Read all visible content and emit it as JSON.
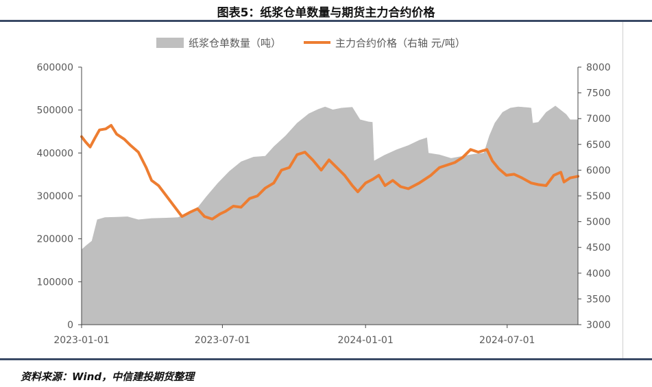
{
  "page": {
    "title": "图表5：纸浆仓单数量与期货主力合约价格",
    "source": "资料来源：Wind，中信建投期货整理"
  },
  "chart_data": {
    "type": "area+line",
    "legend": {
      "position": "top-center",
      "area_label": "纸浆仓单数量（吨）",
      "line_label": "主力合约价格（右轴 元/吨）"
    },
    "colors": {
      "area": "#bfbfbf",
      "line": "#ed7d31",
      "axis": "#444444",
      "text": "#595959"
    },
    "x_axis": {
      "start": "2023-01-01",
      "end": "2024-09-30",
      "ticks": [
        "2023-01-01",
        "2023-07-01",
        "2024-01-01",
        "2024-07-01"
      ]
    },
    "y_left": {
      "min": 0,
      "max": 600000,
      "ticks": [
        "0",
        "100000",
        "200000",
        "300000",
        "400000",
        "500000",
        "600000"
      ]
    },
    "y_right": {
      "min": 3000,
      "max": 8000,
      "ticks": [
        "3000",
        "3500",
        "4000",
        "4500",
        "5000",
        "5500",
        "6000",
        "6500",
        "7000",
        "7500",
        "8000"
      ]
    },
    "grid": false,
    "series": [
      {
        "name": "纸浆仓单数量（吨）",
        "type": "area",
        "axis": "left",
        "points": [
          [
            "2023-01-01",
            175000
          ],
          [
            "2023-01-07",
            185000
          ],
          [
            "2023-01-14",
            195000
          ],
          [
            "2023-01-21",
            245000
          ],
          [
            "2023-01-31",
            250000
          ],
          [
            "2023-02-15",
            251000
          ],
          [
            "2023-03-01",
            252000
          ],
          [
            "2023-03-15",
            245000
          ],
          [
            "2023-04-01",
            248000
          ],
          [
            "2023-04-20",
            249000
          ],
          [
            "2023-05-05",
            250000
          ],
          [
            "2023-05-20",
            262000
          ],
          [
            "2023-05-31",
            275000
          ],
          [
            "2023-06-10",
            298000
          ],
          [
            "2023-06-25",
            330000
          ],
          [
            "2023-07-10",
            358000
          ],
          [
            "2023-07-25",
            380000
          ],
          [
            "2023-08-10",
            391000
          ],
          [
            "2023-08-25",
            393000
          ],
          [
            "2023-09-05",
            415000
          ],
          [
            "2023-09-20",
            440000
          ],
          [
            "2023-10-05",
            470000
          ],
          [
            "2023-10-20",
            492000
          ],
          [
            "2023-11-01",
            502000
          ],
          [
            "2023-11-10",
            508000
          ],
          [
            "2023-11-20",
            501000
          ],
          [
            "2023-12-01",
            505000
          ],
          [
            "2023-12-15",
            507000
          ],
          [
            "2023-12-25",
            478000
          ],
          [
            "2024-01-05",
            473000
          ],
          [
            "2024-01-10",
            472000
          ],
          [
            "2024-01-12",
            382000
          ],
          [
            "2024-01-25",
            395000
          ],
          [
            "2024-02-10",
            408000
          ],
          [
            "2024-02-25",
            418000
          ],
          [
            "2024-03-10",
            430000
          ],
          [
            "2024-03-20",
            436000
          ],
          [
            "2024-03-22",
            400000
          ],
          [
            "2024-04-05",
            396000
          ],
          [
            "2024-04-20",
            388000
          ],
          [
            "2024-05-05",
            393000
          ],
          [
            "2024-05-20",
            398000
          ],
          [
            "2024-06-01",
            400000
          ],
          [
            "2024-06-08",
            440000
          ],
          [
            "2024-06-15",
            470000
          ],
          [
            "2024-06-25",
            495000
          ],
          [
            "2024-07-05",
            505000
          ],
          [
            "2024-07-15",
            508000
          ],
          [
            "2024-07-28",
            506000
          ],
          [
            "2024-08-01",
            505000
          ],
          [
            "2024-08-03",
            470000
          ],
          [
            "2024-08-10",
            472000
          ],
          [
            "2024-08-20",
            495000
          ],
          [
            "2024-09-01",
            510000
          ],
          [
            "2024-09-15",
            490000
          ],
          [
            "2024-09-20",
            478000
          ],
          [
            "2024-09-30",
            478000
          ]
        ]
      },
      {
        "name": "主力合约价格（右轴 元/吨）",
        "type": "line",
        "axis": "right",
        "points": [
          [
            "2023-01-01",
            6650
          ],
          [
            "2023-01-06",
            6550
          ],
          [
            "2023-01-12",
            6450
          ],
          [
            "2023-01-18",
            6620
          ],
          [
            "2023-01-24",
            6780
          ],
          [
            "2023-02-01",
            6800
          ],
          [
            "2023-02-08",
            6870
          ],
          [
            "2023-02-15",
            6700
          ],
          [
            "2023-02-25",
            6600
          ],
          [
            "2023-03-05",
            6480
          ],
          [
            "2023-03-15",
            6350
          ],
          [
            "2023-03-25",
            6050
          ],
          [
            "2023-04-01",
            5800
          ],
          [
            "2023-04-10",
            5700
          ],
          [
            "2023-04-20",
            5500
          ],
          [
            "2023-04-30",
            5300
          ],
          [
            "2023-05-10",
            5100
          ],
          [
            "2023-05-20",
            5180
          ],
          [
            "2023-05-30",
            5250
          ],
          [
            "2023-06-08",
            5100
          ],
          [
            "2023-06-18",
            5050
          ],
          [
            "2023-06-28",
            5150
          ],
          [
            "2023-07-05",
            5200
          ],
          [
            "2023-07-15",
            5300
          ],
          [
            "2023-07-25",
            5280
          ],
          [
            "2023-08-05",
            5450
          ],
          [
            "2023-08-15",
            5500
          ],
          [
            "2023-08-25",
            5650
          ],
          [
            "2023-09-05",
            5750
          ],
          [
            "2023-09-15",
            6000
          ],
          [
            "2023-09-25",
            6050
          ],
          [
            "2023-10-05",
            6300
          ],
          [
            "2023-10-15",
            6350
          ],
          [
            "2023-10-25",
            6200
          ],
          [
            "2023-11-05",
            6000
          ],
          [
            "2023-11-15",
            6200
          ],
          [
            "2023-11-25",
            6050
          ],
          [
            "2023-12-05",
            5900
          ],
          [
            "2023-12-15",
            5700
          ],
          [
            "2023-12-22",
            5580
          ],
          [
            "2024-01-01",
            5750
          ],
          [
            "2024-01-10",
            5820
          ],
          [
            "2024-01-18",
            5900
          ],
          [
            "2024-01-26",
            5700
          ],
          [
            "2024-02-05",
            5800
          ],
          [
            "2024-02-15",
            5680
          ],
          [
            "2024-02-25",
            5640
          ],
          [
            "2024-03-10",
            5750
          ],
          [
            "2024-03-25",
            5900
          ],
          [
            "2024-04-05",
            6050
          ],
          [
            "2024-04-15",
            6100
          ],
          [
            "2024-04-25",
            6150
          ],
          [
            "2024-05-05",
            6250
          ],
          [
            "2024-05-15",
            6400
          ],
          [
            "2024-05-25",
            6350
          ],
          [
            "2024-06-05",
            6400
          ],
          [
            "2024-06-12",
            6180
          ],
          [
            "2024-06-20",
            6030
          ],
          [
            "2024-06-30",
            5900
          ],
          [
            "2024-07-10",
            5920
          ],
          [
            "2024-07-20",
            5850
          ],
          [
            "2024-08-01",
            5750
          ],
          [
            "2024-08-10",
            5720
          ],
          [
            "2024-08-20",
            5700
          ],
          [
            "2024-08-30",
            5900
          ],
          [
            "2024-09-08",
            5960
          ],
          [
            "2024-09-12",
            5770
          ],
          [
            "2024-09-20",
            5850
          ],
          [
            "2024-09-30",
            5880
          ]
        ]
      }
    ]
  }
}
